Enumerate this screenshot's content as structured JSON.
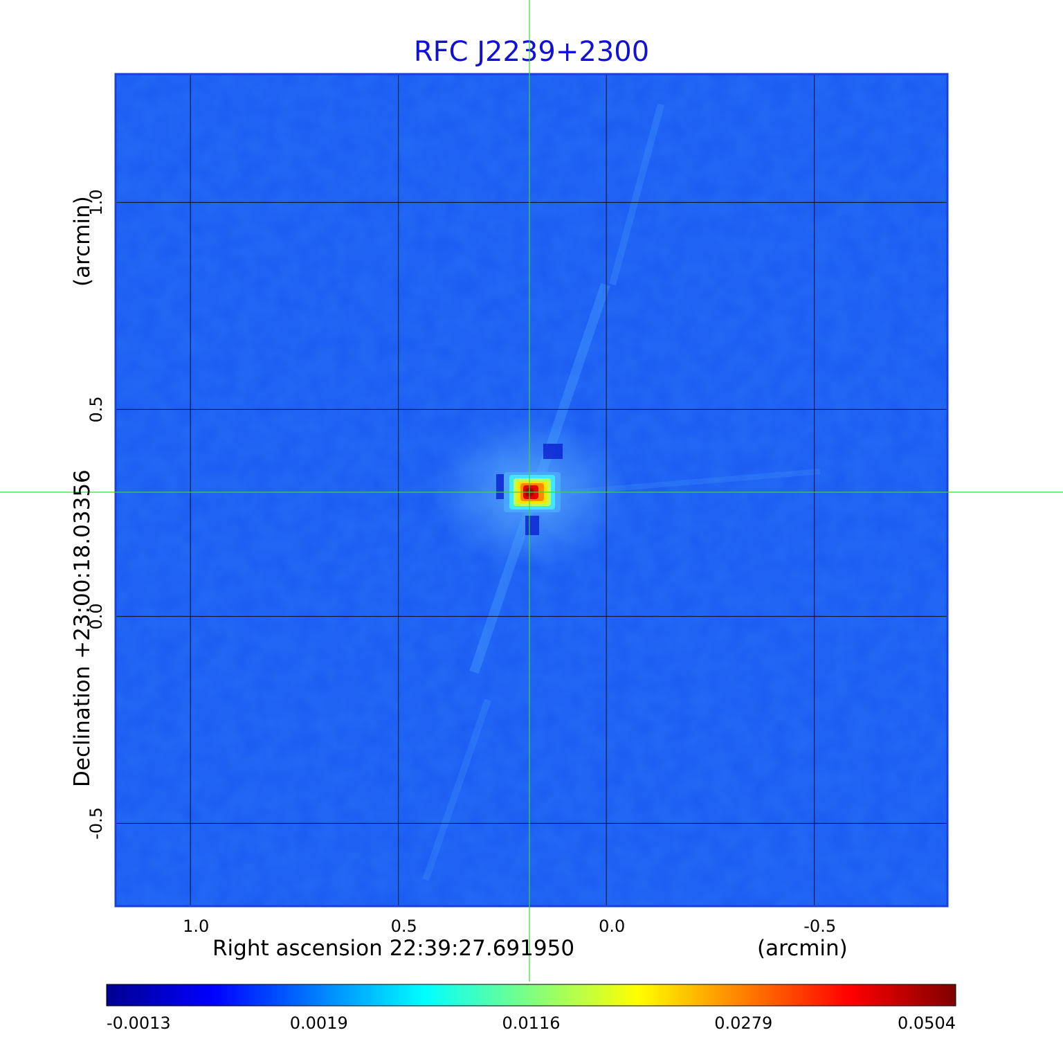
{
  "chart_data": {
    "type": "heatmap",
    "title": "RFC J2239+2300",
    "xlabel": "Right ascension  22:39:27.691950",
    "xunit": "(arcmin)",
    "ylabel": "Declination  +23:00:18.03356",
    "yunit": "(arcmin)",
    "x_ticks": [
      "1.0",
      "0.5",
      "0.0",
      "-0.5"
    ],
    "x_tick_values": [
      1.0,
      0.5,
      0.0,
      -0.5
    ],
    "y_ticks": [
      "1.0",
      "0.5",
      "0.0",
      "-0.5"
    ],
    "y_tick_values": [
      1.0,
      0.5,
      0.0,
      -0.5
    ],
    "xlim": [
      1.18,
      -0.82
    ],
    "ylim": [
      -0.7,
      1.31
    ],
    "grid": true,
    "crosshair": {
      "x": 0.185,
      "y": 0.3,
      "color": "#33dd33"
    },
    "source_peak": {
      "x": 0.185,
      "y": 0.3,
      "value": 0.0504
    },
    "colorbar": {
      "colormap": "jet",
      "ticks": [
        "-0.0013",
        "0.0019",
        "0.0116",
        "0.0279",
        "0.0504"
      ],
      "tick_values": [
        -0.0013,
        0.0019,
        0.0116,
        0.0279,
        0.0504
      ],
      "placement": "bottom"
    }
  }
}
